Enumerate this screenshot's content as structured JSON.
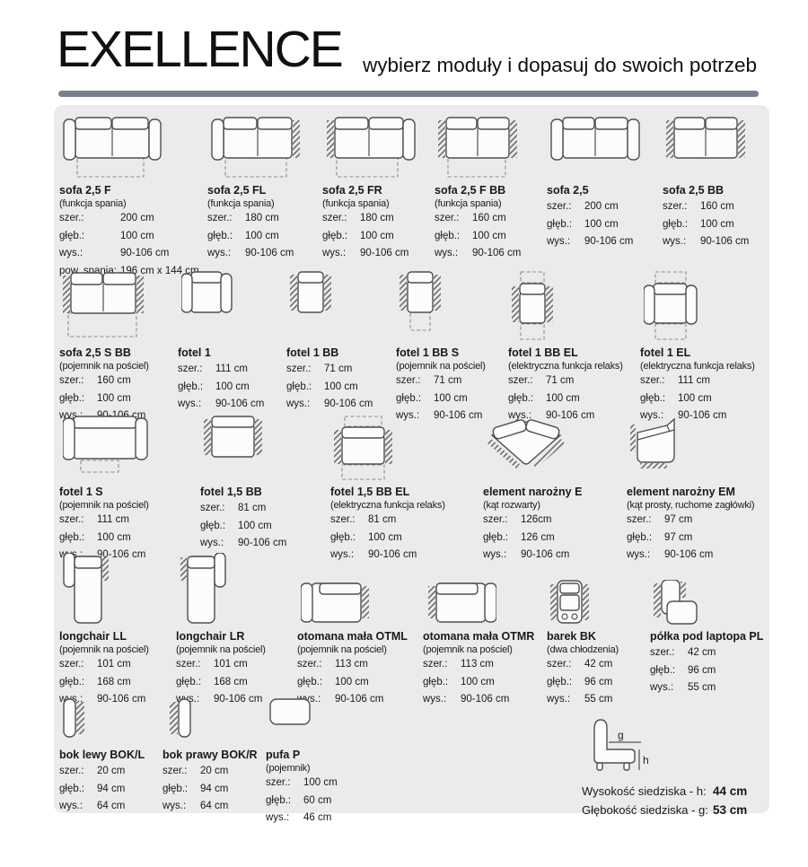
{
  "header": {
    "title": "EXELLENCE",
    "subtitle": "wybierz moduły i dopasuj do swoich potrzeb"
  },
  "colors": {
    "accent_bar": "#75808f",
    "panel_bg": "#ebebed",
    "ink": "#191919",
    "drawing_stroke": "#4f4f4f"
  },
  "modules": [
    {
      "name": "sofa 2,5 F",
      "note": "(funkcja spania)",
      "specs": [
        {
          "label": "szer.:",
          "value": "200 cm"
        },
        {
          "label": "głęb.:",
          "value": "100 cm"
        },
        {
          "label": "wys.:",
          "value": "90-106 cm"
        },
        {
          "label": "pow. spania:",
          "value": "196 cm x 144 cm"
        }
      ]
    },
    {
      "name": "sofa 2,5 FL",
      "note": "(funkcja spania)",
      "specs": [
        {
          "label": "szer.:",
          "value": "180 cm"
        },
        {
          "label": "głęb.:",
          "value": "100 cm"
        },
        {
          "label": "wys.:",
          "value": "90-106 cm"
        }
      ]
    },
    {
      "name": "sofa 2,5 FR",
      "note": "(funkcja spania)",
      "specs": [
        {
          "label": "szer.:",
          "value": "180 cm"
        },
        {
          "label": "głęb.:",
          "value": "100 cm"
        },
        {
          "label": "wys.:",
          "value": "90-106 cm"
        }
      ]
    },
    {
      "name": "sofa 2,5 F BB",
      "note": "(funkcja spania)",
      "specs": [
        {
          "label": "szer.:",
          "value": "160 cm"
        },
        {
          "label": "głęb.:",
          "value": "100 cm"
        },
        {
          "label": "wys.:",
          "value": "90-106 cm"
        }
      ]
    },
    {
      "name": "sofa 2,5",
      "note": "",
      "specs": [
        {
          "label": "szer.:",
          "value": "200 cm"
        },
        {
          "label": "głęb.:",
          "value": "100 cm"
        },
        {
          "label": "wys.:",
          "value": "90-106 cm"
        }
      ]
    },
    {
      "name": "sofa 2,5 BB",
      "note": "",
      "specs": [
        {
          "label": "szer.:",
          "value": "160 cm"
        },
        {
          "label": "głęb.:",
          "value": "100 cm"
        },
        {
          "label": "wys.:",
          "value": "90-106 cm"
        }
      ]
    },
    {
      "name": "sofa 2,5 S BB",
      "note": "(pojemnik na pościel)",
      "specs": [
        {
          "label": "szer.:",
          "value": "160 cm"
        },
        {
          "label": "głęb.:",
          "value": "100 cm"
        },
        {
          "label": "wys.:",
          "value": "90-106 cm"
        }
      ]
    },
    {
      "name": "fotel 1",
      "note": "",
      "specs": [
        {
          "label": "szer.:",
          "value": "111 cm"
        },
        {
          "label": "głęb.:",
          "value": "100 cm"
        },
        {
          "label": "wys.:",
          "value": "90-106 cm"
        }
      ]
    },
    {
      "name": "fotel 1 BB",
      "note": "",
      "specs": [
        {
          "label": "szer.:",
          "value": "71 cm"
        },
        {
          "label": "głęb.:",
          "value": "100 cm"
        },
        {
          "label": "wys.:",
          "value": "90-106 cm"
        }
      ]
    },
    {
      "name": "fotel 1 BB S",
      "note": "(pojemnik na pościel)",
      "specs": [
        {
          "label": "szer.:",
          "value": "71 cm"
        },
        {
          "label": "głęb.:",
          "value": "100 cm"
        },
        {
          "label": "wys.:",
          "value": "90-106 cm"
        }
      ]
    },
    {
      "name": "fotel 1 BB EL",
      "note": "(elektryczna funkcja relaks)",
      "specs": [
        {
          "label": "szer.:",
          "value": "71 cm"
        },
        {
          "label": "głęb.:",
          "value": "100 cm"
        },
        {
          "label": "wys.:",
          "value": "90-106 cm"
        }
      ]
    },
    {
      "name": "fotel 1 EL",
      "note": "(elektryczna funkcja relaks)",
      "specs": [
        {
          "label": "szer.:",
          "value": "111 cm"
        },
        {
          "label": "głęb.:",
          "value": "100 cm"
        },
        {
          "label": "wys.:",
          "value": "90-106 cm"
        }
      ]
    },
    {
      "name": "fotel 1 S",
      "note": "(pojemnik na pościel)",
      "specs": [
        {
          "label": "szer.:",
          "value": "111 cm"
        },
        {
          "label": "głęb.:",
          "value": "100 cm"
        },
        {
          "label": "wys.:",
          "value": "90-106 cm"
        }
      ]
    },
    {
      "name": "fotel 1,5 BB",
      "note": "",
      "specs": [
        {
          "label": "szer.:",
          "value": "81 cm"
        },
        {
          "label": "głęb.:",
          "value": "100 cm"
        },
        {
          "label": "wys.:",
          "value": "90-106 cm"
        }
      ]
    },
    {
      "name": "fotel 1,5 BB EL",
      "note": "(elektryczna funkcja relaks)",
      "specs": [
        {
          "label": "szer.:",
          "value": "81 cm"
        },
        {
          "label": "głęb.:",
          "value": "100 cm"
        },
        {
          "label": "wys.:",
          "value": "90-106 cm"
        }
      ]
    },
    {
      "name": "element narożny E",
      "note": "(kąt rozwarty)",
      "specs": [
        {
          "label": "szer.:",
          "value": "126cm"
        },
        {
          "label": "głęb.:",
          "value": "126 cm"
        },
        {
          "label": "wys.:",
          "value": "90-106 cm"
        }
      ]
    },
    {
      "name": "element narożny EM",
      "note": "(kąt prosty, ruchome zagłówki)",
      "specs": [
        {
          "label": "szer.:",
          "value": "97 cm"
        },
        {
          "label": "głęb.:",
          "value": "97 cm"
        },
        {
          "label": "wys.:",
          "value": "90-106 cm"
        }
      ]
    },
    {
      "name": "longchair LL",
      "note": "(pojemnik na pościel)",
      "specs": [
        {
          "label": "szer.:",
          "value": "101 cm"
        },
        {
          "label": "głęb.:",
          "value": "168 cm"
        },
        {
          "label": "wys.:",
          "value": "90-106 cm"
        }
      ]
    },
    {
      "name": "longchair LR",
      "note": "(pojemnik na pościel)",
      "specs": [
        {
          "label": "szer.:",
          "value": "101 cm"
        },
        {
          "label": "głęb.:",
          "value": "168 cm"
        },
        {
          "label": "wys.:",
          "value": "90-106 cm"
        }
      ]
    },
    {
      "name": "otomana mała OTML",
      "note": "(pojemnik na pościel)",
      "specs": [
        {
          "label": "szer.:",
          "value": "113 cm"
        },
        {
          "label": "głęb.:",
          "value": "100 cm"
        },
        {
          "label": "wys.:",
          "value": "90-106 cm"
        }
      ]
    },
    {
      "name": "otomana mała OTMR",
      "note": "(pojemnik na pościel)",
      "specs": [
        {
          "label": "szer.:",
          "value": "113 cm"
        },
        {
          "label": "głęb.:",
          "value": "100 cm"
        },
        {
          "label": "wys.:",
          "value": "90-106 cm"
        }
      ]
    },
    {
      "name": "barek BK",
      "note": "(dwa chłodzenia)",
      "specs": [
        {
          "label": "szer.:",
          "value": "42 cm"
        },
        {
          "label": "głęb.:",
          "value": "96 cm"
        },
        {
          "label": "wys.:",
          "value": "55 cm"
        }
      ]
    },
    {
      "name": "półka pod laptopa PL",
      "note": "",
      "specs": [
        {
          "label": "szer.:",
          "value": "42 cm"
        },
        {
          "label": "głęb.:",
          "value": "96 cm"
        },
        {
          "label": "wys.:",
          "value": "55 cm"
        }
      ]
    },
    {
      "name": "bok lewy BOK/L",
      "note": "",
      "specs": [
        {
          "label": "szer.:",
          "value": "20 cm"
        },
        {
          "label": "głęb.:",
          "value": "94 cm"
        },
        {
          "label": "wys.:",
          "value": "64 cm"
        }
      ]
    },
    {
      "name": "bok prawy BOK/R",
      "note": "",
      "specs": [
        {
          "label": "szer.:",
          "value": "20 cm"
        },
        {
          "label": "głęb.:",
          "value": "94 cm"
        },
        {
          "label": "wys.:",
          "value": "64 cm"
        }
      ]
    },
    {
      "name": "pufa P",
      "note": "(pojemnik)",
      "specs": [
        {
          "label": "szer.:",
          "value": "100 cm"
        },
        {
          "label": "głęb.:",
          "value": "60 cm"
        },
        {
          "label": "wys.:",
          "value": "46 cm"
        }
      ]
    }
  ],
  "legend": {
    "height_label": "Wysokość siedziska - h:",
    "height_value": "44 cm",
    "depth_label": "Głębokość siedziska - g:",
    "depth_value": "53 cm",
    "depth_letter": "g",
    "height_letter": "h"
  }
}
